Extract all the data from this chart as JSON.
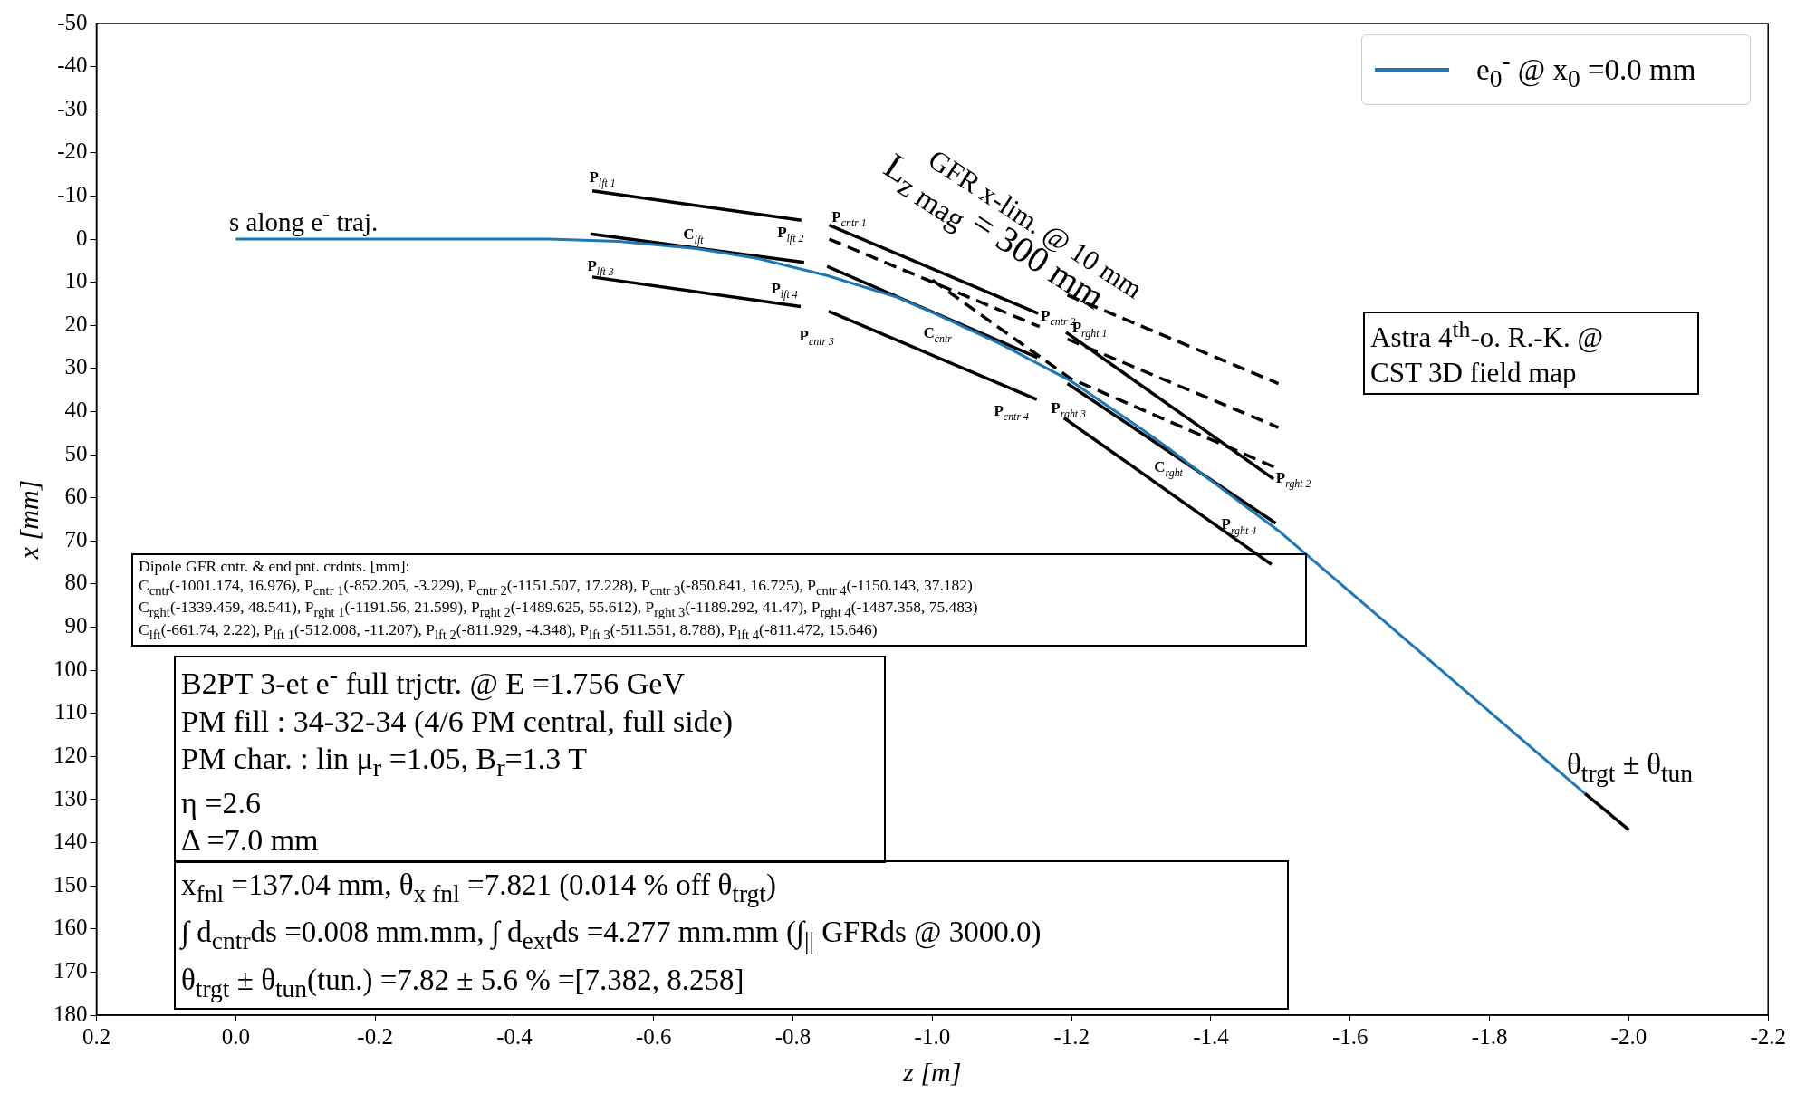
{
  "chart_data": {
    "type": "line",
    "xlabel": "z [m]",
    "ylabel": "x [mm]",
    "xlim": [
      0.2,
      -2.2
    ],
    "xticks": [
      0.2,
      {
        "value": 0,
        "label": "0.0"
      },
      -0.2,
      -0.4,
      -0.6,
      -0.8,
      {
        "value": -1,
        "label": "-1.0"
      },
      -1.2,
      -1.4,
      -1.6,
      -1.8,
      {
        "value": -2,
        "label": "-2.0"
      },
      -2.2
    ],
    "ylim": [
      180,
      -50
    ],
    "yticks": [
      -50,
      -40,
      -30,
      -20,
      -10,
      0,
      10,
      20,
      30,
      40,
      50,
      60,
      70,
      80,
      90,
      100,
      110,
      120,
      130,
      140,
      150,
      160,
      170,
      180
    ],
    "grid": false,
    "legend": "top right",
    "series": [
      {
        "name": "e$_{0}$$^{-}$ @ x$_{0}$ =0.0 mm",
        "color": "#1f77b4",
        "x": [
          0,
          -0.45,
          -0.55,
          -0.662,
          -0.75,
          -0.85,
          -0.95,
          -1.0,
          -1.1,
          -1.2,
          -1.3,
          -1.339,
          -1.4,
          -1.5,
          -1.937
        ],
        "values": [
          0,
          0,
          0.5,
          2.2,
          4.5,
          8.5,
          13.5,
          17,
          24.5,
          33,
          44,
          48.5,
          56,
          68,
          128.6
        ]
      },
      {
        "color": "#000000",
        "x": [
          -0.512,
          -0.812
        ],
        "values": [
          -11.207,
          -4.348
        ]
      },
      {
        "color": "#000000",
        "x": [
          -0.509,
          -0.816
        ],
        "values": [
          -1.2,
          5.4
        ]
      },
      {
        "color": "#000000",
        "x": [
          -0.512,
          -0.811
        ],
        "values": [
          8.788,
          15.646
        ]
      },
      {
        "color": "#000000",
        "x": [
          -0.852,
          -1.152
        ],
        "values": [
          -3.229,
          17.228
        ]
      },
      {
        "color": "#000000",
        "x": [
          -0.849,
          -1.151
        ],
        "values": [
          6.3,
          27.5
        ]
      },
      {
        "color": "#000000",
        "x": [
          -0.851,
          -1.15
        ],
        "values": [
          16.725,
          37.182
        ]
      },
      {
        "color": "#000000",
        "x": [
          -1.192,
          -1.49
        ],
        "values": [
          21.599,
          55.612
        ]
      },
      {
        "color": "#000000",
        "x": [
          -1.194,
          -1.493
        ],
        "values": [
          33.5,
          65.9
        ]
      },
      {
        "color": "#000000",
        "x": [
          -1.189,
          -1.487
        ],
        "values": [
          41.47,
          75.483
        ]
      },
      {
        "color": "#000000",
        "line_style": "dashed",
        "x": [
          -0.852,
          -1.154
        ],
        "values": [
          0,
          20.3
        ]
      },
      {
        "color": "#000000",
        "line_style": "dashed",
        "x": [
          -1.0,
          -1.198,
          -1.497
        ],
        "values": [
          9.5,
          32.3,
          53.3
        ]
      },
      {
        "color": "#000000",
        "line_style": "dashed",
        "x": [
          -1.194,
          -1.497
        ],
        "values": [
          13,
          33.5
        ]
      },
      {
        "color": "#000000",
        "line_style": "dashed",
        "x": [
          -1.194,
          -1.497
        ],
        "values": [
          23.2,
          43.7
        ]
      },
      {
        "color": "#000000",
        "x": [
          -1.937,
          -2.0
        ],
        "values": [
          128.6,
          137
        ]
      }
    ],
    "annotations": [
      "s along e$^{-}$ traj.",
      "GFR x-lim. @ 10 mm",
      "L$_{z mag}$ = 300 mm",
      "Astra 4$^{th}$-o. R.-K. @\nCST 3D field map",
      "Dipole GFR cntr. & end pnt. crdnts. [mm]:\nC$_{cntr}$(-1001.174, 16.976), P$_{cntr 1}$(-852.205, -3.229), P$_{cntr 2}$(-1151.507, 17.228), P$_{cntr 3}$(-850.841, 16.725), P$_{cntr 4}$(-1150.143, 37.182)\nC$_{rght}$(-1339.459, 48.541), P$_{rght 1}$(-1191.56, 21.599), P$_{rght 2}$(-1489.625, 55.612), P$_{rght 3}$(-1189.292, 41.47), P$_{rght 4}$(-1487.358, 75.483)\nC$_{lft}$(-661.74, 2.22), P$_{lft 1}$(-512.008, -11.207), P$_{lft 2}$(-811.929, -4.348), P$_{lft 3}$(-511.551, 8.788), P$_{lft 4}$(-811.472, 15.646)",
      "B2PT 3-et e$^{-}$ full trjctr. @ E =1.756 GeV\nPM fill : 34-32-34 (4/6 PM central, full side)\nPM char. : lin μ$_{r}$ =1.05, B$_{r}$=1.3 T\nη =2.6\nΔ =7.0 mm",
      "x$_{fnl}$ =137.04 mm, θ$_{x fnl}$ =7.821 (0.014 % off θ$_{trgt}$)\n∫ d$_{cntr}$ds =0.008 mm.mm, ∫ d$_{ext}$ds =4.277 mm.mm (∫$_{||}$ GFRds @ 3000.0)\nθ$_{trgt}$ ± θ$_{tun}$(tun.) =7.82 ± 5.6 % =[7.382, 8.258]",
      "θ$_{trgt}$ ± θ$_{tun}$",
      {
        "text": "P$_{lft 1}$",
        "x": -0.512,
        "y": -11.2
      },
      {
        "text": "P$_{lft 2}$",
        "x": -0.812,
        "y": -4.3
      },
      {
        "text": "C$_{lft}$",
        "x": -0.662,
        "y": 2.2
      },
      {
        "text": "P$_{lft 3}$",
        "x": -0.512,
        "y": 8.8
      },
      {
        "text": "P$_{lft 4}$",
        "x": -0.811,
        "y": 15.6
      },
      {
        "text": "P$_{cntr 1}$",
        "x": -0.852,
        "y": -3.2
      },
      {
        "text": "P$_{cntr 2}$",
        "x": -1.152,
        "y": 17.2
      },
      {
        "text": "C$_{cntr}$",
        "x": -1.001,
        "y": 17
      },
      {
        "text": "P$_{cntr 3}$",
        "x": -0.851,
        "y": 16.7
      },
      {
        "text": "P$_{cntr 4}$",
        "x": -1.15,
        "y": 37.2
      },
      {
        "text": "P$_{rght 1}$",
        "x": -1.192,
        "y": 21.6
      },
      {
        "text": "P$_{rght 2}$",
        "x": -1.49,
        "y": 55.6
      },
      {
        "text": "C$_{rght}$",
        "x": -1.339,
        "y": 48.5
      },
      {
        "text": "P$_{rght 3}$",
        "x": -1.189,
        "y": 41.5
      },
      {
        "text": "P$_{rght 4}$",
        "x": -1.487,
        "y": 75.5
      }
    ]
  }
}
